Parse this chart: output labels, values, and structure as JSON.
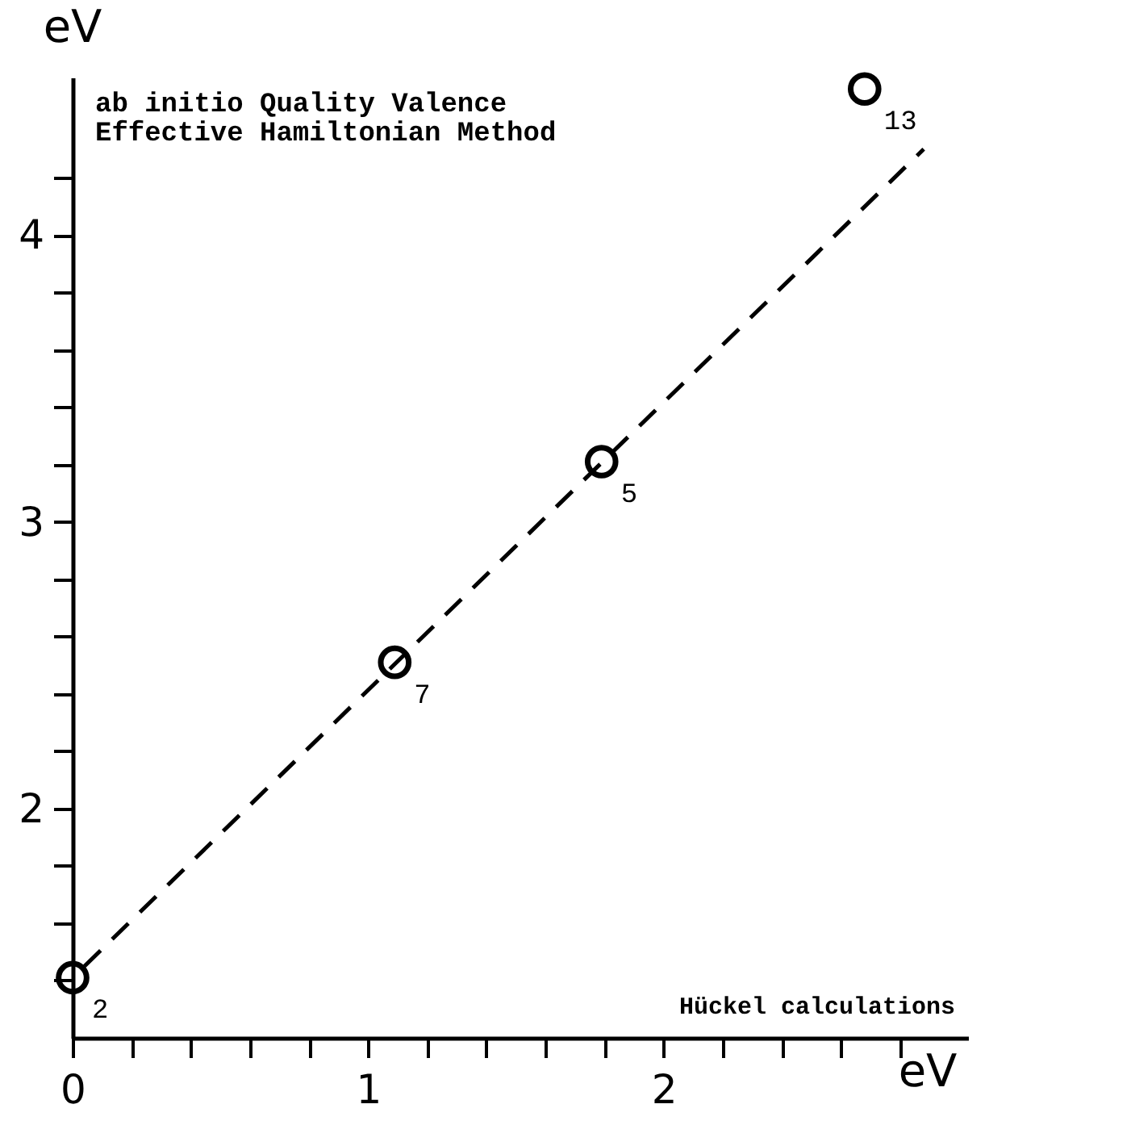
{
  "chart_data": {
    "type": "scatter",
    "xlabel": "Hückel calculations",
    "ylabel": "ab initio Quality Valence\nEffective Hamiltonian Method",
    "x": [
      0,
      1.09,
      1.79,
      2.68
    ],
    "series": [
      {
        "color": "#000000",
        "marker": "circle",
        "values": [
          1.41,
          2.51,
          3.21,
          4.51
        ]
      },
      {
        "type": "line",
        "color": "#000000",
        "line_style": "dashed",
        "x": [
          0.04,
          2.88
        ],
        "values": [
          1.45,
          4.3
        ]
      }
    ],
    "xlim": [
      0,
      3.03
    ],
    "ylim": [
      1.2,
      4.55
    ],
    "xticks": [
      0,
      {
        "value": 0.2,
        "label": null
      },
      {
        "value": 0.4,
        "label": null
      },
      {
        "value": 0.6,
        "label": null
      },
      {
        "value": 0.8,
        "label": null
      },
      1,
      {
        "value": 1.2,
        "label": null
      },
      {
        "value": 1.4,
        "label": null
      },
      {
        "value": 1.6,
        "label": null
      },
      {
        "value": 1.8,
        "label": null
      },
      2,
      {
        "value": 2.2,
        "label": null
      },
      {
        "value": 2.4,
        "label": null
      },
      {
        "value": 2.6,
        "label": null
      },
      {
        "value": 2.8,
        "label": null
      }
    ],
    "yticks": [
      {
        "value": 1.4,
        "label": null
      },
      {
        "value": 1.6,
        "label": null
      },
      {
        "value": 1.8,
        "label": null
      },
      2,
      {
        "value": 2.2,
        "label": null
      },
      {
        "value": 2.4,
        "label": null
      },
      {
        "value": 2.6,
        "label": null
      },
      {
        "value": 2.8,
        "label": null
      },
      3,
      {
        "value": 3.2,
        "label": null
      },
      {
        "value": 3.4,
        "label": null
      },
      {
        "value": 3.6,
        "label": null
      },
      {
        "value": 3.8,
        "label": null
      },
      4,
      {
        "value": 4.2,
        "label": null
      }
    ],
    "annotations": [
      "eV",
      "eV",
      {
        "text": "2",
        "x": 0,
        "y": 1.41
      },
      {
        "text": "7",
        "x": 1.09,
        "y": 2.51
      },
      {
        "text": "5",
        "x": 1.79,
        "y": 3.21
      },
      {
        "text": "13",
        "x": 2.68,
        "y": 4.51
      }
    ],
    "grid": false
  }
}
